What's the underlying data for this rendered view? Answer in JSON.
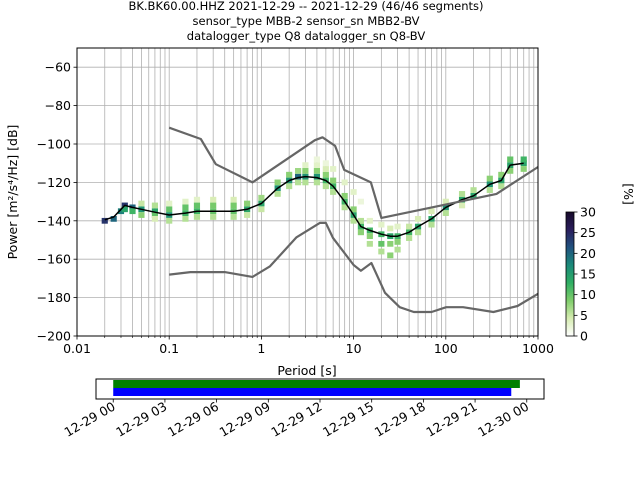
{
  "chart_data": {
    "type": "heatmap",
    "title_lines": [
      "BK.BK60.00.HHZ   2021-12-29 -- 2021-12-29  (46/46 segments)",
      "sensor_type MBB-2 sensor_sn MBB2-BV",
      "datalogger_type Q8 datalogger_sn Q8-BV"
    ],
    "xlabel": "Period [s]",
    "ylabel": "Power [m²/s⁴/Hz] [dB]",
    "xscale": "log",
    "xlim": [
      0.01,
      1000
    ],
    "ylim": [
      -200,
      -50
    ],
    "xticks": [
      {
        "value": 0.01,
        "label": "0.01"
      },
      {
        "value": 0.1,
        "label": "0.1"
      },
      {
        "value": 1,
        "label": "1"
      },
      {
        "value": 10,
        "label": "10"
      },
      {
        "value": 100,
        "label": "100"
      },
      {
        "value": 1000,
        "label": "1000"
      }
    ],
    "yticks": [
      {
        "value": -60,
        "label": "−60"
      },
      {
        "value": -80,
        "label": "−80"
      },
      {
        "value": -100,
        "label": "−100"
      },
      {
        "value": -120,
        "label": "−120"
      },
      {
        "value": -140,
        "label": "−140"
      },
      {
        "value": -160,
        "label": "−160"
      },
      {
        "value": -180,
        "label": "−180"
      },
      {
        "value": -200,
        "label": "−200"
      }
    ],
    "grid": true,
    "colorbar": {
      "label": "[%]",
      "range": [
        0,
        30
      ],
      "ticks": [
        {
          "value": 0,
          "label": "0"
        },
        {
          "value": 5,
          "label": "5"
        },
        {
          "value": 10,
          "label": "10"
        },
        {
          "value": 15,
          "label": "15"
        },
        {
          "value": 20,
          "label": "20"
        },
        {
          "value": 25,
          "label": "25"
        },
        {
          "value": 30,
          "label": "30"
        }
      ],
      "colors": [
        "#ffffff",
        "#d6ecb1",
        "#7fcd6b",
        "#2fae63",
        "#1b8a7a",
        "#21527f",
        "#2a1e5c",
        "#170a2a"
      ]
    },
    "series": [
      {
        "role": "mean",
        "color": "#000000",
        "points": [
          [
            0.02,
            -139.5
          ],
          [
            0.025,
            -138
          ],
          [
            0.03,
            -134
          ],
          [
            0.033,
            -132
          ],
          [
            0.04,
            -133
          ],
          [
            0.05,
            -134
          ],
          [
            0.07,
            -135.5
          ],
          [
            0.1,
            -137
          ],
          [
            0.15,
            -136
          ],
          [
            0.2,
            -135
          ],
          [
            0.3,
            -135
          ],
          [
            0.5,
            -135
          ],
          [
            0.7,
            -134
          ],
          [
            1,
            -131
          ],
          [
            1.5,
            -123
          ],
          [
            2,
            -119
          ],
          [
            2.5,
            -117.5
          ],
          [
            3,
            -117
          ],
          [
            4,
            -117.5
          ],
          [
            5,
            -119
          ],
          [
            6,
            -122
          ],
          [
            8,
            -130
          ],
          [
            10,
            -137
          ],
          [
            12,
            -143
          ],
          [
            15,
            -145
          ],
          [
            20,
            -147
          ],
          [
            25,
            -148
          ],
          [
            30,
            -148
          ],
          [
            40,
            -146
          ],
          [
            50,
            -143
          ],
          [
            70,
            -139
          ],
          [
            100,
            -133
          ],
          [
            150,
            -129
          ],
          [
            200,
            -127
          ],
          [
            300,
            -121
          ],
          [
            400,
            -119
          ],
          [
            500,
            -111
          ],
          [
            700,
            -110
          ]
        ]
      },
      {
        "role": "NHNM",
        "color": "#666666",
        "points": [
          [
            0.1,
            -91.5
          ],
          [
            0.22,
            -97.4
          ],
          [
            0.32,
            -110.5
          ],
          [
            0.8,
            -120
          ],
          [
            3.8,
            -98
          ],
          [
            4.6,
            -96.5
          ],
          [
            6.3,
            -101
          ],
          [
            7.9,
            -113.5
          ],
          [
            15.4,
            -120
          ],
          [
            20,
            -138.5
          ],
          [
            354.8,
            -126
          ],
          [
            1000,
            -112
          ]
        ]
      },
      {
        "role": "NLNM",
        "color": "#666666",
        "points": [
          [
            0.1,
            -168
          ],
          [
            0.17,
            -166.7
          ],
          [
            0.4,
            -166.7
          ],
          [
            0.8,
            -169.2
          ],
          [
            1.24,
            -163.7
          ],
          [
            2.4,
            -148.6
          ],
          [
            4.3,
            -141.1
          ],
          [
            5,
            -141.1
          ],
          [
            6,
            -149
          ],
          [
            10,
            -163
          ],
          [
            12,
            -166
          ],
          [
            15.6,
            -162
          ],
          [
            21.9,
            -177.5
          ],
          [
            31.6,
            -185
          ],
          [
            45,
            -187.5
          ],
          [
            70,
            -187.5
          ],
          [
            101,
            -185
          ],
          [
            154,
            -185
          ],
          [
            328,
            -187.5
          ],
          [
            600,
            -184.4
          ],
          [
            1000,
            -178
          ]
        ]
      }
    ],
    "histogram": [
      [
        0.02,
        -140,
        24
      ],
      [
        0.025,
        -139,
        20
      ],
      [
        0.03,
        -135,
        18
      ],
      [
        0.033,
        -132,
        24
      ],
      [
        0.033,
        -134,
        14
      ],
      [
        0.04,
        -133,
        20
      ],
      [
        0.04,
        -135,
        12
      ],
      [
        0.05,
        -134,
        16
      ],
      [
        0.05,
        -137,
        8
      ],
      [
        0.05,
        -131,
        5
      ],
      [
        0.07,
        -135,
        14
      ],
      [
        0.07,
        -137,
        10
      ],
      [
        0.07,
        -132,
        6
      ],
      [
        0.07,
        -139,
        4
      ],
      [
        0.1,
        -137,
        16
      ],
      [
        0.1,
        -134,
        10
      ],
      [
        0.1,
        -140,
        6
      ],
      [
        0.1,
        -131,
        3
      ],
      [
        0.15,
        -136,
        12
      ],
      [
        0.15,
        -133,
        10
      ],
      [
        0.15,
        -139,
        6
      ],
      [
        0.15,
        -130,
        3
      ],
      [
        0.2,
        -135,
        12
      ],
      [
        0.2,
        -132,
        10
      ],
      [
        0.2,
        -138,
        6
      ],
      [
        0.2,
        -129,
        3
      ],
      [
        0.3,
        -135,
        10
      ],
      [
        0.3,
        -132,
        9
      ],
      [
        0.3,
        -138,
        6
      ],
      [
        0.3,
        -129,
        4
      ],
      [
        0.5,
        -135,
        10
      ],
      [
        0.5,
        -132,
        9
      ],
      [
        0.5,
        -138,
        6
      ],
      [
        0.5,
        -129,
        4
      ],
      [
        0.7,
        -134,
        14
      ],
      [
        0.7,
        -131,
        8
      ],
      [
        0.7,
        -137,
        5
      ],
      [
        1,
        -131,
        14
      ],
      [
        1,
        -128,
        7
      ],
      [
        1,
        -134,
        5
      ],
      [
        1.5,
        -123,
        16
      ],
      [
        1.5,
        -120,
        8
      ],
      [
        1.5,
        -126,
        6
      ],
      [
        2,
        -119,
        16
      ],
      [
        2,
        -116,
        8
      ],
      [
        2,
        -122,
        6
      ],
      [
        2.5,
        -117,
        20
      ],
      [
        2.5,
        -114,
        7
      ],
      [
        2.5,
        -120,
        6
      ],
      [
        3,
        -117,
        16
      ],
      [
        3,
        -114,
        8
      ],
      [
        3,
        -120,
        6
      ],
      [
        3,
        -111,
        3
      ],
      [
        4,
        -117,
        16
      ],
      [
        4,
        -114,
        8
      ],
      [
        4,
        -120,
        6
      ],
      [
        4,
        -111,
        3
      ],
      [
        4,
        -108,
        2
      ],
      [
        5,
        -119,
        12
      ],
      [
        5,
        -116,
        8
      ],
      [
        5,
        -122,
        6
      ],
      [
        5,
        -113,
        4
      ],
      [
        5,
        -110,
        2
      ],
      [
        6,
        -122,
        12
      ],
      [
        6,
        -119,
        8
      ],
      [
        6,
        -125,
        6
      ],
      [
        6,
        -113,
        3
      ],
      [
        8,
        -130,
        12
      ],
      [
        8,
        -127,
        8
      ],
      [
        8,
        -133,
        6
      ],
      [
        8,
        -120,
        3
      ],
      [
        10,
        -137,
        14
      ],
      [
        10,
        -134,
        8
      ],
      [
        10,
        -140,
        6
      ],
      [
        10,
        -125,
        3
      ],
      [
        12,
        -143,
        12
      ],
      [
        12,
        -146,
        8
      ],
      [
        12,
        -140,
        6
      ],
      [
        12,
        -130,
        2
      ],
      [
        15,
        -145,
        12
      ],
      [
        15,
        -148,
        8
      ],
      [
        15,
        -152,
        6
      ],
      [
        15,
        -140,
        3
      ],
      [
        20,
        -147,
        12
      ],
      [
        20,
        -152,
        10
      ],
      [
        20,
        -156,
        6
      ],
      [
        20,
        -142,
        3
      ],
      [
        25,
        -148,
        14
      ],
      [
        25,
        -152,
        8
      ],
      [
        25,
        -158,
        8
      ],
      [
        25,
        -144,
        4
      ],
      [
        30,
        -148,
        12
      ],
      [
        30,
        -151,
        8
      ],
      [
        30,
        -155,
        6
      ],
      [
        30,
        -143,
        3
      ],
      [
        40,
        -146,
        12
      ],
      [
        40,
        -149,
        6
      ],
      [
        40,
        -143,
        5
      ],
      [
        50,
        -143,
        14
      ],
      [
        50,
        -146,
        6
      ],
      [
        50,
        -139,
        4
      ],
      [
        70,
        -139,
        14
      ],
      [
        70,
        -142,
        6
      ],
      [
        70,
        -135,
        4
      ],
      [
        100,
        -133,
        16
      ],
      [
        100,
        -136,
        6
      ],
      [
        100,
        -130,
        4
      ],
      [
        150,
        -129,
        14
      ],
      [
        150,
        -126,
        6
      ],
      [
        150,
        -132,
        4
      ],
      [
        200,
        -127,
        14
      ],
      [
        200,
        -124,
        6
      ],
      [
        300,
        -121,
        16
      ],
      [
        300,
        -118,
        8
      ],
      [
        300,
        -124,
        6
      ],
      [
        400,
        -119,
        14
      ],
      [
        400,
        -116,
        8
      ],
      [
        400,
        -122,
        6
      ],
      [
        500,
        -111,
        14
      ],
      [
        500,
        -108,
        10
      ],
      [
        500,
        -114,
        8
      ],
      [
        700,
        -110,
        14
      ],
      [
        700,
        -108,
        12
      ],
      [
        700,
        -113,
        8
      ]
    ]
  },
  "timeline": {
    "ticks": [
      "12-29 00",
      "12-29 03",
      "12-29 06",
      "12-29 09",
      "12-29 12",
      "12-29 15",
      "12-29 18",
      "12-29 21",
      "12-30 00"
    ],
    "range_hours": [
      -1,
      25
    ],
    "bars": [
      {
        "name": "data",
        "color": "#008000",
        "start_hours": 0,
        "end_hours": 23.6
      },
      {
        "name": "psd",
        "color": "#0000ff",
        "start_hours": 0,
        "end_hours": 23.1
      }
    ]
  }
}
